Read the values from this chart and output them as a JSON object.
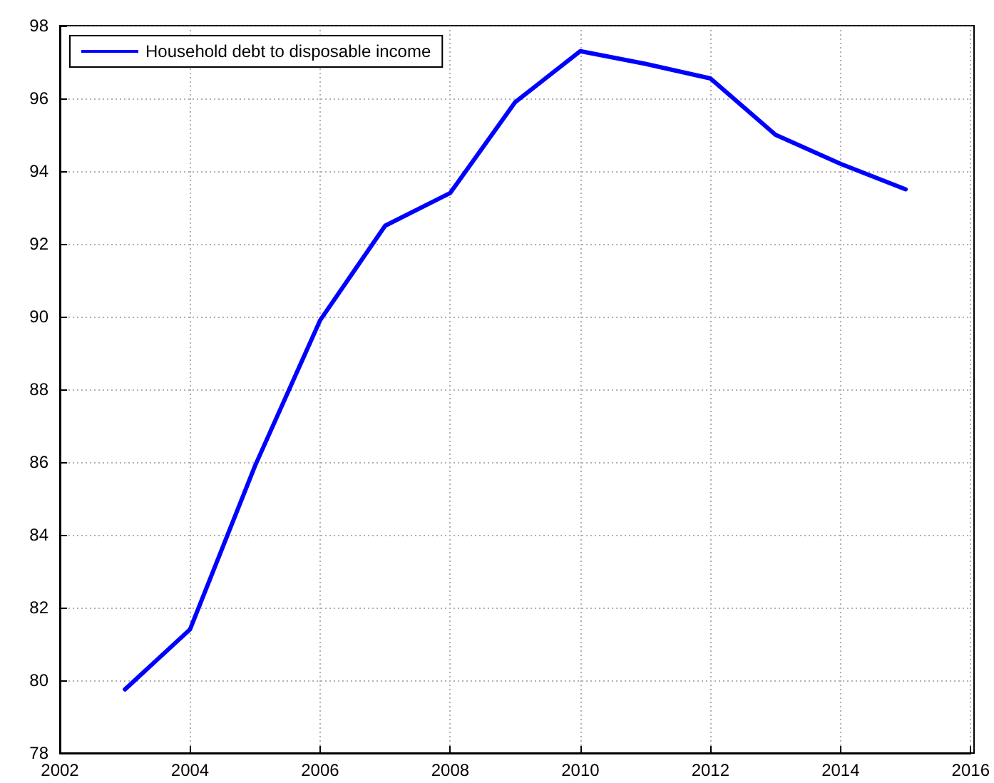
{
  "chart_data": {
    "type": "line",
    "x": [
      2003,
      2004,
      2005,
      2006,
      2007,
      2008,
      2009,
      2010,
      2011,
      2012,
      2013,
      2014,
      2015
    ],
    "series": [
      {
        "name": "Household debt to disposable income",
        "color": "#0000ff",
        "values": [
          79.75,
          81.4,
          85.9,
          89.9,
          92.5,
          93.4,
          95.9,
          97.3,
          96.95,
          96.55,
          95.0,
          94.2,
          93.5
        ]
      }
    ],
    "xlim": [
      2002,
      2016
    ],
    "xticks": [
      2002,
      2004,
      2006,
      2008,
      2010,
      2012,
      2014,
      2016
    ],
    "ylim": [
      78,
      98
    ],
    "yticks": [
      78,
      80,
      82,
      84,
      86,
      88,
      90,
      92,
      94,
      96,
      98
    ],
    "grid": true,
    "legend": "top left",
    "marker": "none",
    "line_style": "solid"
  }
}
